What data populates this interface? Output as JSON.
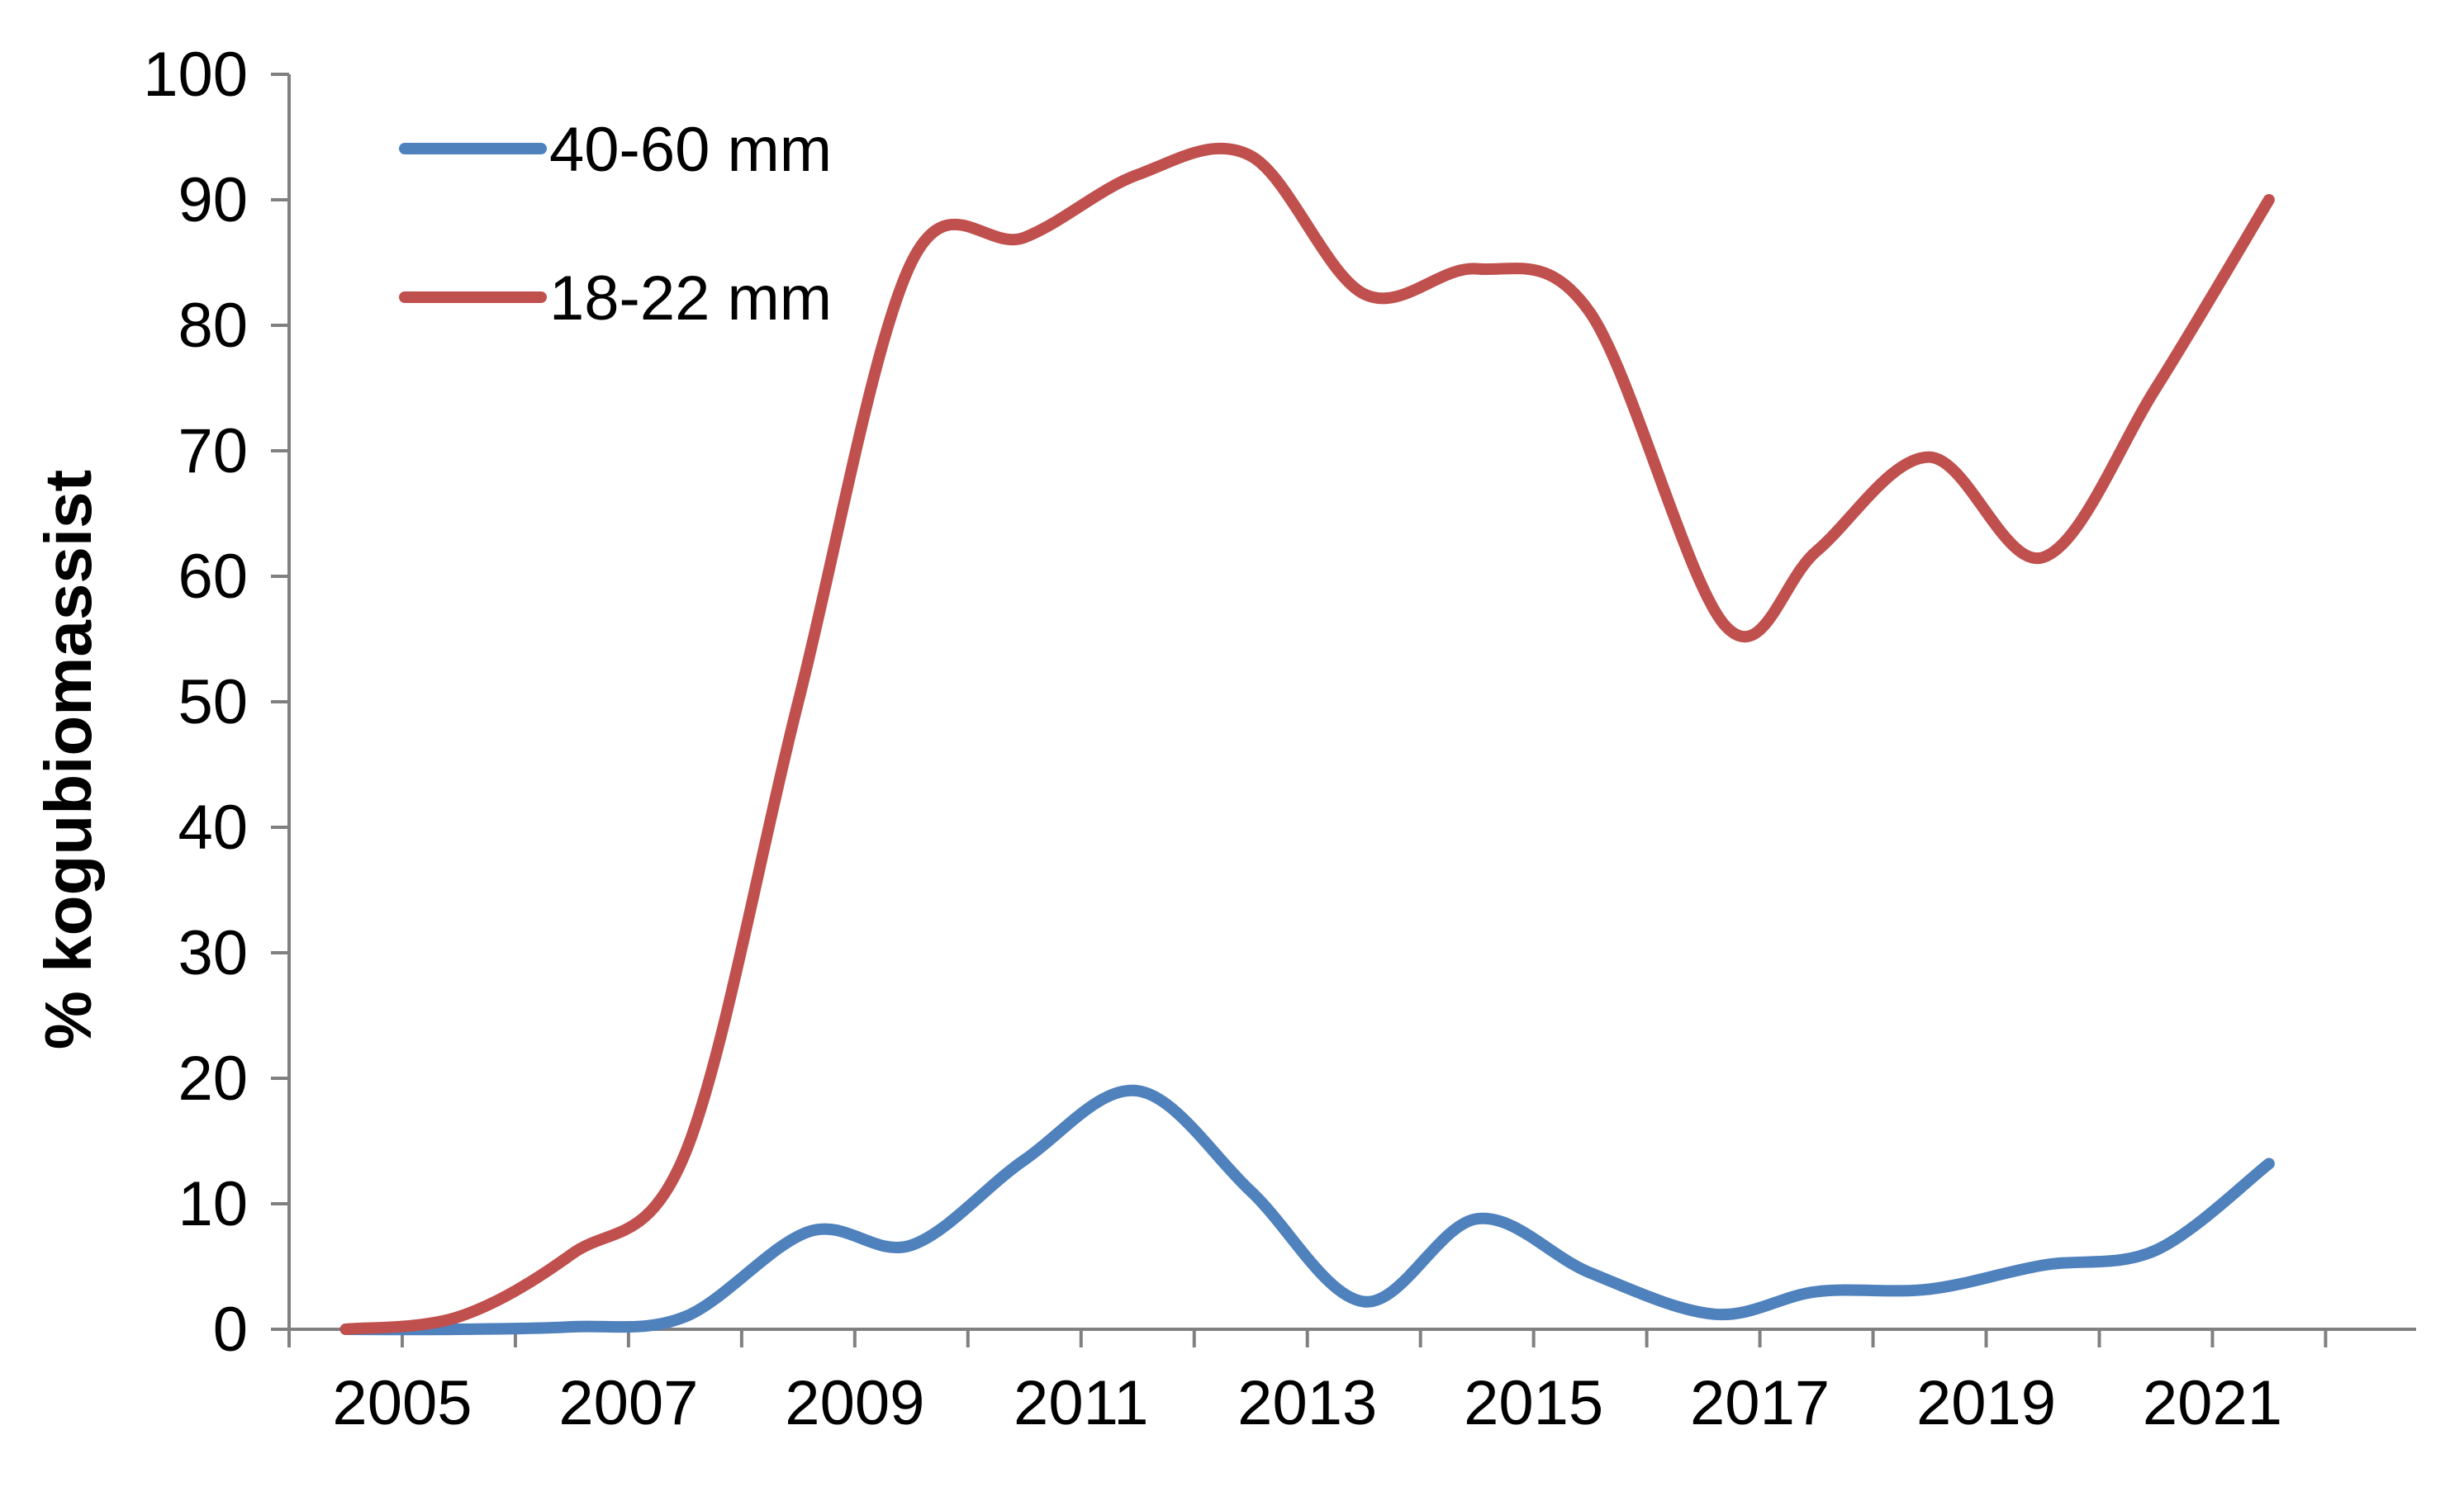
{
  "chart_data": {
    "type": "line",
    "title": "",
    "xlabel": "",
    "ylabel": "% kogubiomassist",
    "xlim": [
      2004,
      2022.8
    ],
    "ylim": [
      0,
      100
    ],
    "yticks": [
      0,
      10,
      20,
      30,
      40,
      50,
      60,
      70,
      80,
      90,
      100
    ],
    "xticks": [
      2005,
      2007,
      2009,
      2011,
      2013,
      2015,
      2017,
      2019,
      2021
    ],
    "grid": false,
    "legend_position": "top-left",
    "series": [
      {
        "name": "40-60 mm",
        "color": "#4f81bd",
        "x": [
          2004.5,
          2005.5,
          2006.5,
          2007.5,
          2008.6,
          2009.5,
          2010.5,
          2011.5,
          2012.5,
          2013.5,
          2014.5,
          2015.5,
          2016.6,
          2017.5,
          2018.5,
          2019.5,
          2020.5,
          2021.5
        ],
        "y": [
          0,
          0,
          0.2,
          1,
          7.8,
          6.7,
          13.5,
          19,
          11,
          2.2,
          8.8,
          4.5,
          1.2,
          3,
          3.2,
          5.1,
          6.3,
          13.2
        ]
      },
      {
        "name": "18-22 mm",
        "color": "#c0504d",
        "x": [
          2004.5,
          2005.5,
          2006.5,
          2007.5,
          2008.5,
          2009.5,
          2010.5,
          2011.5,
          2012.5,
          2013.5,
          2014.5,
          2015.5,
          2016.7,
          2017.5,
          2018.5,
          2019.5,
          2020.5,
          2021.5
        ],
        "y": [
          0,
          1,
          6,
          14,
          50,
          85,
          87,
          92,
          93.5,
          82.5,
          84.5,
          81,
          56,
          62,
          69.5,
          61.5,
          75,
          90
        ]
      }
    ]
  }
}
